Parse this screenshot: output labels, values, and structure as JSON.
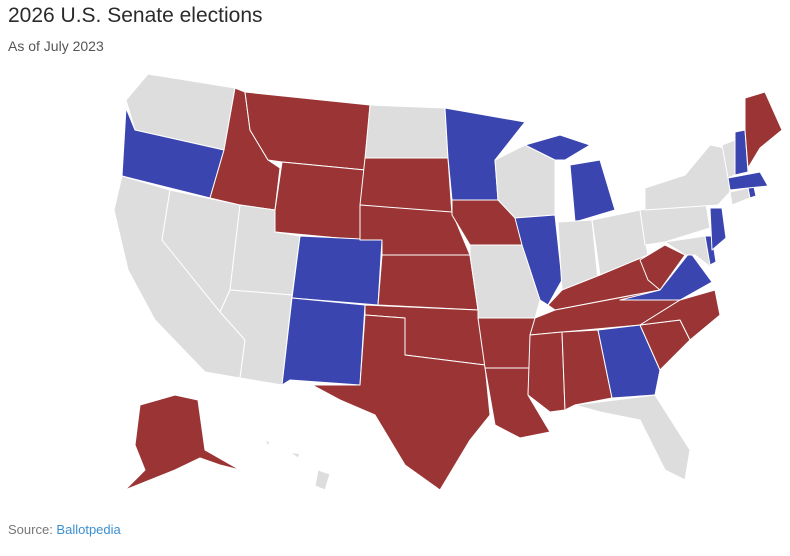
{
  "header": {
    "title": "2026 U.S. Senate elections",
    "subtitle": "As of July 2023"
  },
  "footer": {
    "source_label": "Source: ",
    "source_link": "Ballotpedia"
  },
  "colors": {
    "democratic": "#3a45b0",
    "republican": "#9b3535",
    "no_election": "#dddddd"
  },
  "states": {
    "WA": "none",
    "OR": "dem",
    "CA": "none",
    "NV": "none",
    "ID": "rep",
    "MT": "rep",
    "WY": "rep",
    "UT": "none",
    "AZ": "none",
    "CO": "dem",
    "NM": "dem",
    "ND": "none",
    "SD": "rep",
    "NE": "rep",
    "KS": "rep",
    "OK": "rep",
    "TX": "rep",
    "MN": "dem",
    "IA": "rep",
    "MO": "none",
    "AR": "rep",
    "LA": "rep",
    "WI": "none",
    "IL": "dem",
    "MI": "dem",
    "IN": "none",
    "OH": "none",
    "KY": "rep",
    "TN": "rep",
    "MS": "rep",
    "AL": "rep",
    "GA": "dem",
    "FL": "none",
    "SC": "rep",
    "NC": "rep",
    "VA": "dem",
    "WV": "rep",
    "MD": "none",
    "DE": "dem",
    "NJ": "dem",
    "PA": "none",
    "NY": "none",
    "CT": "none",
    "RI": "dem",
    "MA": "dem",
    "VT": "none",
    "NH": "dem",
    "ME": "rep",
    "AK": "rep",
    "HI": "none"
  }
}
